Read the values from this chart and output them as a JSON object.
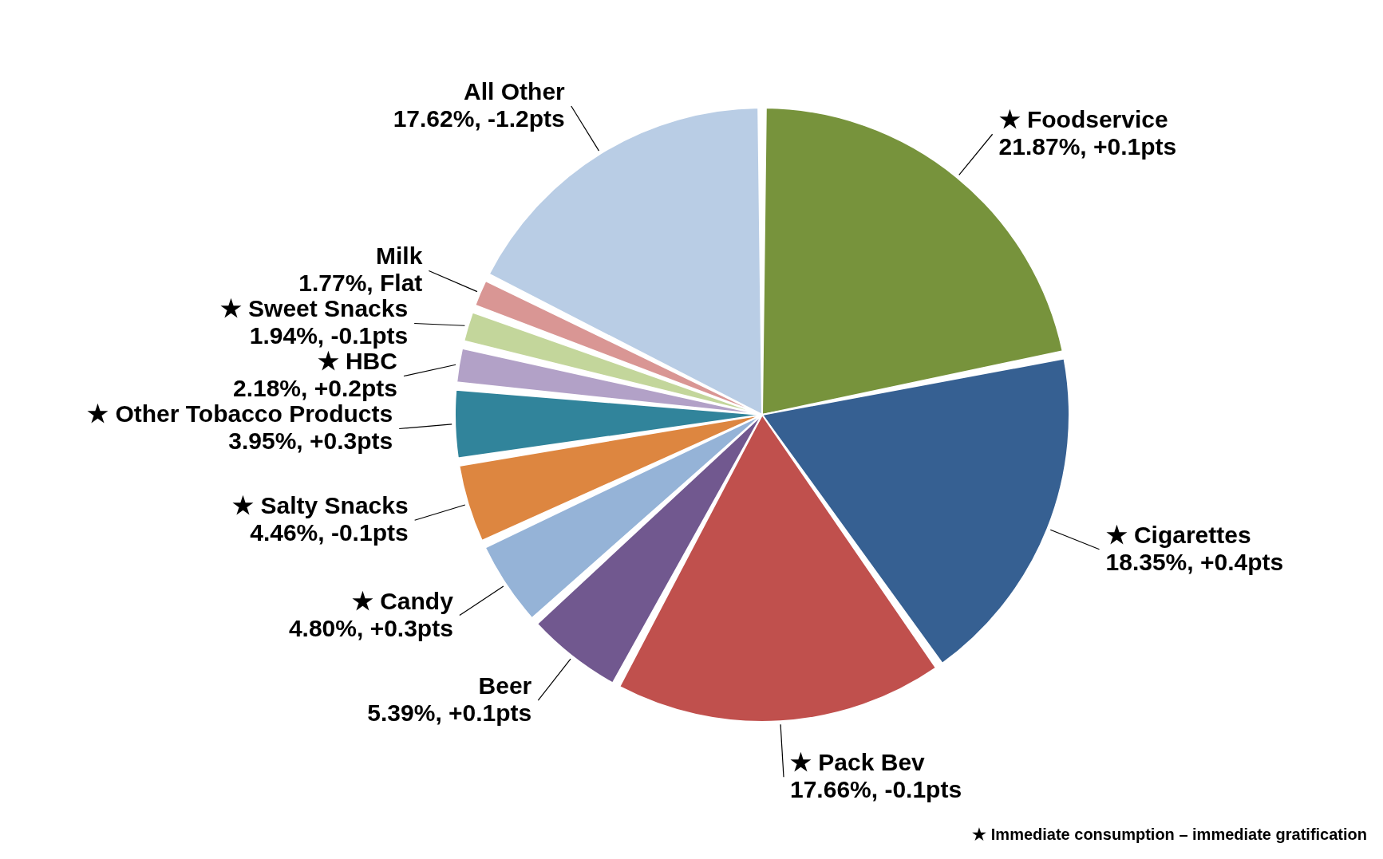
{
  "chart_data": {
    "type": "pie",
    "categories": [
      "★ Foodservice",
      "★ Cigarettes",
      "★ Pack Bev",
      "Beer",
      "★ Candy",
      "★ Salty Snacks",
      "★ Other Tobacco Products",
      "★ HBC",
      "★ Sweet Snacks",
      "Milk",
      "All Other"
    ],
    "values": [
      21.87,
      18.35,
      17.66,
      5.39,
      4.8,
      4.46,
      3.95,
      2.18,
      1.94,
      1.77,
      17.62
    ],
    "value_labels": [
      "21.87%, +0.1pts",
      "18.35%, +0.4pts",
      "17.66%, -0.1pts",
      "5.39%, +0.1pts",
      "4.80%, +0.3pts",
      "4.46%, -0.1pts",
      "3.95%, +0.3pts",
      "2.18%, +0.2pts",
      "1.94%, -0.1pts",
      "1.77%, Flat",
      "17.62%, -1.2pts"
    ],
    "colors": [
      "#77933c",
      "#366092",
      "#c0504d",
      "#71588f",
      "#95b3d7",
      "#dd8640",
      "#31849b",
      "#b2a1c7",
      "#c3d69b",
      "#d99694",
      "#b9cde5"
    ],
    "annotations": [
      "★ Immediate consumption – immediate gratification"
    ]
  }
}
